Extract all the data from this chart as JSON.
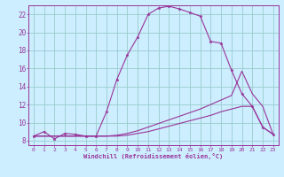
{
  "xlabel": "Windchill (Refroidissement éolien,°C)",
  "bg_color": "#cceeff",
  "grid_color": "#99cccc",
  "line_color": "#993399",
  "spine_color": "#993399",
  "xlim": [
    -0.5,
    23.5
  ],
  "ylim": [
    7.5,
    23.0
  ],
  "xtick_labels": [
    "0",
    "1",
    "2",
    "3",
    "4",
    "5",
    "6",
    "7",
    "8",
    "9",
    "10",
    "11",
    "12",
    "13",
    "14",
    "15",
    "16",
    "17",
    "18",
    "19",
    "20",
    "21",
    "22",
    "23"
  ],
  "xtick_vals": [
    0,
    1,
    2,
    3,
    4,
    5,
    6,
    7,
    8,
    9,
    10,
    11,
    12,
    13,
    14,
    15,
    16,
    17,
    18,
    19,
    20,
    21,
    22,
    23
  ],
  "ytick_vals": [
    8,
    10,
    12,
    14,
    16,
    18,
    20,
    22
  ],
  "curve1_x": [
    0,
    1,
    2,
    3,
    4,
    5,
    6,
    7,
    8,
    9,
    10,
    11,
    12,
    13,
    14,
    15,
    16,
    17,
    18,
    19,
    20,
    21,
    22,
    23
  ],
  "curve1_y": [
    8.5,
    9.0,
    8.2,
    8.8,
    8.7,
    8.5,
    8.5,
    11.2,
    14.8,
    17.5,
    19.5,
    22.0,
    22.7,
    22.9,
    22.6,
    22.2,
    21.8,
    19.0,
    18.8,
    15.8,
    13.2,
    11.8,
    9.5,
    8.7
  ],
  "curve2_x": [
    0,
    1,
    2,
    3,
    4,
    5,
    6,
    7,
    8,
    9,
    10,
    11,
    12,
    13,
    14,
    15,
    16,
    17,
    18,
    19,
    20,
    21,
    22,
    23
  ],
  "curve2_y": [
    8.5,
    8.5,
    8.5,
    8.5,
    8.5,
    8.5,
    8.5,
    8.5,
    8.5,
    8.6,
    8.8,
    9.0,
    9.3,
    9.6,
    9.9,
    10.2,
    10.5,
    10.8,
    11.2,
    11.5,
    11.8,
    11.8,
    9.5,
    8.7
  ],
  "curve3_x": [
    0,
    1,
    2,
    3,
    4,
    5,
    6,
    7,
    8,
    9,
    10,
    11,
    12,
    13,
    14,
    15,
    16,
    17,
    18,
    19,
    20,
    21,
    22,
    23
  ],
  "curve3_y": [
    8.5,
    8.5,
    8.5,
    8.5,
    8.5,
    8.5,
    8.5,
    8.5,
    8.6,
    8.8,
    9.1,
    9.5,
    9.9,
    10.3,
    10.7,
    11.1,
    11.5,
    12.0,
    12.5,
    13.0,
    15.7,
    13.2,
    11.8,
    8.7
  ]
}
